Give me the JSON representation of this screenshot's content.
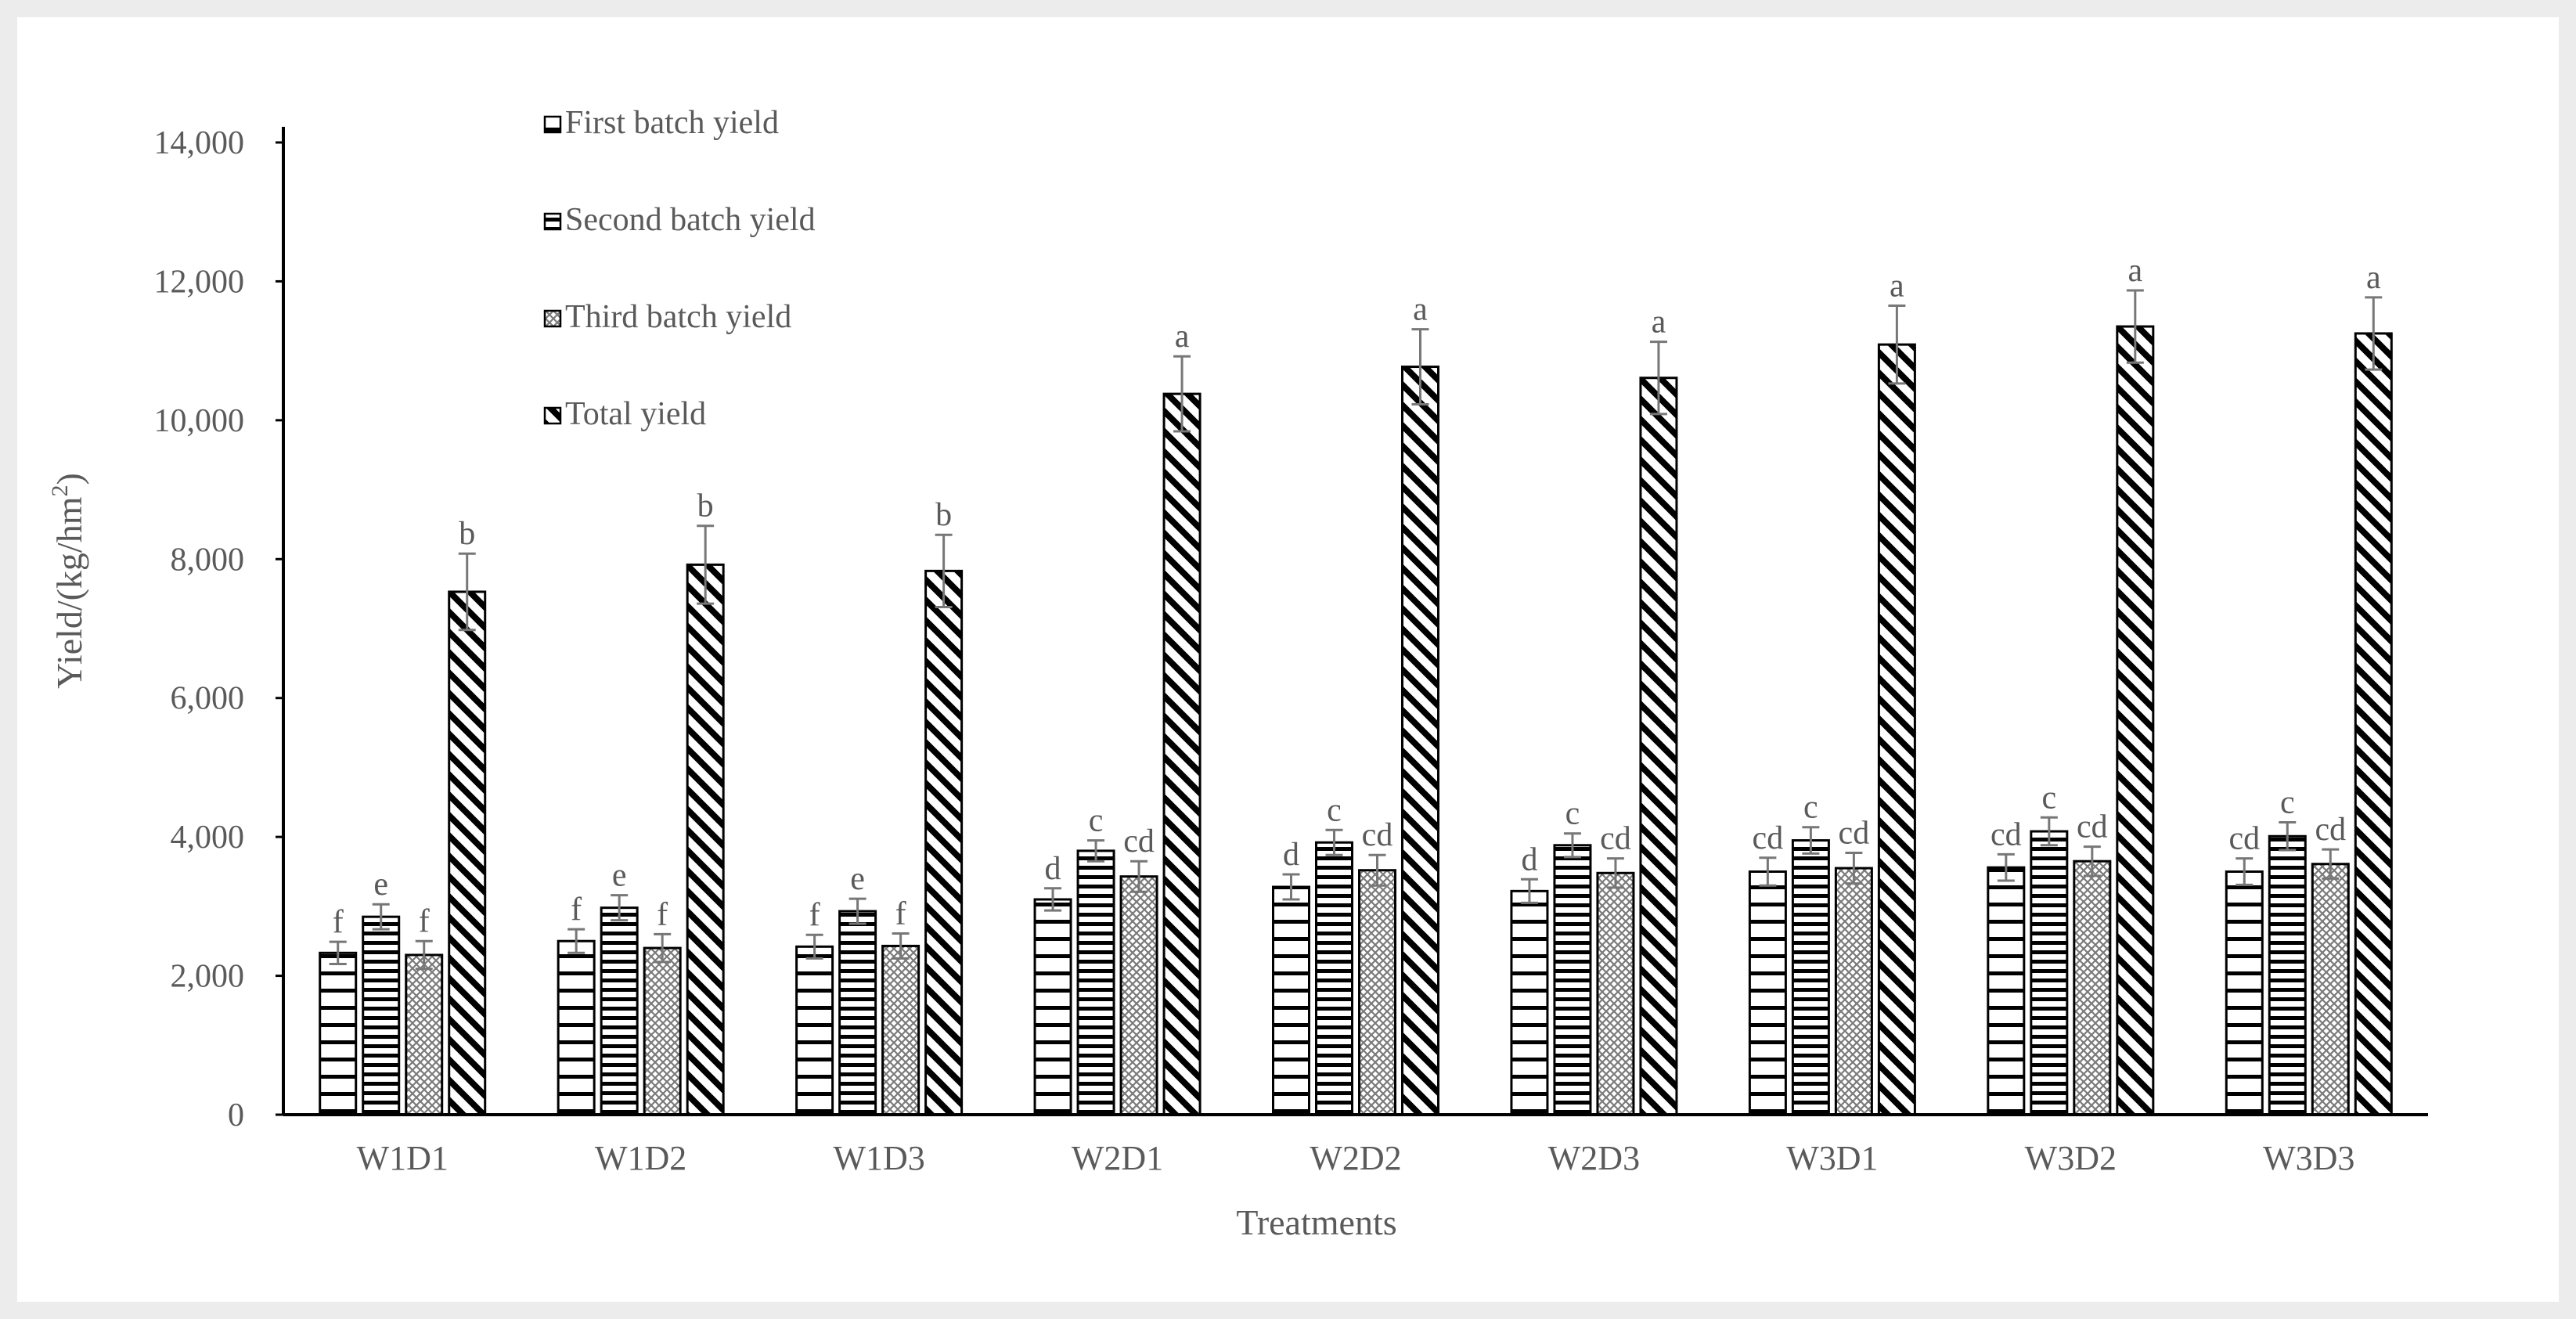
{
  "chart_data": {
    "type": "bar",
    "title": "",
    "xlabel": "Treatments",
    "ylabel_main": "Yield/(kg/hm",
    "ylabel_sup": "2",
    "ylabel_close": ")",
    "ylim": [
      0,
      14000
    ],
    "yticks": [
      0,
      2000,
      4000,
      6000,
      8000,
      10000,
      12000,
      14000
    ],
    "ytick_labels": [
      "0",
      "2,000",
      "4,000",
      "6,000",
      "8,000",
      "10,000",
      "12,000",
      "14,000"
    ],
    "categories": [
      "W1D1",
      "W1D2",
      "W1D3",
      "W2D1",
      "W2D2",
      "W2D3",
      "W3D1",
      "W3D2",
      "W3D3"
    ],
    "legend_position": "top-left",
    "grid": false,
    "series": [
      {
        "name": "First batch yield",
        "pattern": "horizontal-wide",
        "values": [
          2330,
          2500,
          2420,
          3100,
          3280,
          3220,
          3500,
          3560,
          3500
        ],
        "errors": [
          160,
          170,
          170,
          160,
          180,
          170,
          200,
          190,
          190
        ],
        "letters": [
          "f",
          "f",
          "f",
          "d",
          "d",
          "d",
          "cd",
          "cd",
          "cd"
        ]
      },
      {
        "name": "Second batch yield",
        "pattern": "horizontal-dense",
        "values": [
          2850,
          2980,
          2930,
          3800,
          3920,
          3880,
          3950,
          4080,
          4010
        ],
        "errors": [
          180,
          180,
          180,
          150,
          180,
          170,
          190,
          200,
          200
        ],
        "letters": [
          "e",
          "e",
          "e",
          "c",
          "c",
          "c",
          "c",
          "c",
          "c"
        ]
      },
      {
        "name": "Third batch yield",
        "pattern": "crosshatch",
        "values": [
          2300,
          2400,
          2430,
          3430,
          3520,
          3480,
          3550,
          3650,
          3610
        ],
        "errors": [
          200,
          200,
          180,
          220,
          220,
          210,
          220,
          210,
          210
        ],
        "letters": [
          "f",
          "f",
          "f",
          "cd",
          "cd",
          "cd",
          "cd",
          "cd",
          "cd"
        ]
      },
      {
        "name": "Total yield",
        "pattern": "diagonal",
        "values": [
          7530,
          7920,
          7830,
          10380,
          10770,
          10610,
          11090,
          11350,
          11250
        ],
        "errors": [
          550,
          560,
          520,
          540,
          540,
          520,
          560,
          520,
          520
        ],
        "letters": [
          "b",
          "b",
          "b",
          "a",
          "a",
          "a",
          "a",
          "a",
          "a"
        ]
      }
    ]
  }
}
